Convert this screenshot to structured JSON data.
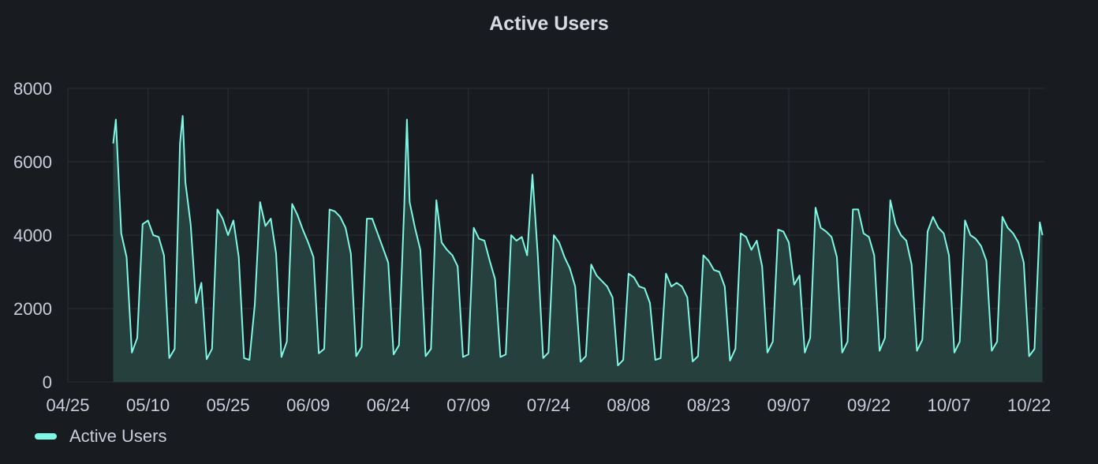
{
  "panel": {
    "title": "Active Users"
  },
  "colors": {
    "background": "#181b1f",
    "series_line": "#7ef7e4",
    "series_fill": "#26403e",
    "grid": "#2c3035",
    "text": "#ccccdc"
  },
  "legend": {
    "placement": "bottom-left",
    "items": [
      {
        "label": "Active Users",
        "color": "#7ef7e4",
        "icon": "legend-line-swatch"
      }
    ]
  },
  "chart_data": {
    "type": "area",
    "title": "Active Users",
    "xlabel": "",
    "ylabel": "",
    "grid": true,
    "x_axis": {
      "range": [
        "2023-04-25",
        "2023-10-25"
      ],
      "ticks": [
        {
          "date": "2023-04-25",
          "label": "04/25"
        },
        {
          "date": "2023-05-10",
          "label": "05/10"
        },
        {
          "date": "2023-05-25",
          "label": "05/25"
        },
        {
          "date": "2023-06-09",
          "label": "06/09"
        },
        {
          "date": "2023-06-24",
          "label": "06/24"
        },
        {
          "date": "2023-07-09",
          "label": "07/09"
        },
        {
          "date": "2023-07-24",
          "label": "07/24"
        },
        {
          "date": "2023-08-08",
          "label": "08/08"
        },
        {
          "date": "2023-08-23",
          "label": "08/23"
        },
        {
          "date": "2023-09-07",
          "label": "09/07"
        },
        {
          "date": "2023-09-22",
          "label": "09/22"
        },
        {
          "date": "2023-10-07",
          "label": "10/07"
        },
        {
          "date": "2023-10-22",
          "label": "10/22"
        }
      ]
    },
    "y_axis": {
      "range": [
        0,
        8000
      ],
      "ticks": [
        0,
        2000,
        4000,
        6000,
        8000
      ]
    },
    "series": [
      {
        "name": "Active Users",
        "color": "#7ef7e4",
        "points": [
          [
            "2023-05-03T12:00",
            6500
          ],
          [
            "2023-05-04",
            7150
          ],
          [
            "2023-05-05",
            4050
          ],
          [
            "2023-05-06",
            3400
          ],
          [
            "2023-05-07",
            800
          ],
          [
            "2023-05-08",
            1200
          ],
          [
            "2023-05-09",
            4300
          ],
          [
            "2023-05-10",
            4400
          ],
          [
            "2023-05-11",
            4000
          ],
          [
            "2023-05-12",
            3950
          ],
          [
            "2023-05-13",
            3450
          ],
          [
            "2023-05-14",
            650
          ],
          [
            "2023-05-15",
            900
          ],
          [
            "2023-05-16",
            6500
          ],
          [
            "2023-05-16T12:00",
            7250
          ],
          [
            "2023-05-17",
            5450
          ],
          [
            "2023-05-18",
            4300
          ],
          [
            "2023-05-19",
            2150
          ],
          [
            "2023-05-20",
            2700
          ],
          [
            "2023-05-21",
            620
          ],
          [
            "2023-05-22",
            900
          ],
          [
            "2023-05-23",
            4700
          ],
          [
            "2023-05-24",
            4450
          ],
          [
            "2023-05-25",
            4000
          ],
          [
            "2023-05-26",
            4400
          ],
          [
            "2023-05-27",
            3400
          ],
          [
            "2023-05-28",
            650
          ],
          [
            "2023-05-29",
            600
          ],
          [
            "2023-05-30",
            2100
          ],
          [
            "2023-05-31",
            4900
          ],
          [
            "2023-06-01",
            4250
          ],
          [
            "2023-06-02",
            4450
          ],
          [
            "2023-06-03",
            3500
          ],
          [
            "2023-06-04",
            680
          ],
          [
            "2023-06-05",
            1100
          ],
          [
            "2023-06-06",
            4850
          ],
          [
            "2023-06-07",
            4550
          ],
          [
            "2023-06-08",
            4150
          ],
          [
            "2023-06-09",
            3800
          ],
          [
            "2023-06-10",
            3400
          ],
          [
            "2023-06-11",
            780
          ],
          [
            "2023-06-12",
            900
          ],
          [
            "2023-06-13",
            4700
          ],
          [
            "2023-06-14",
            4650
          ],
          [
            "2023-06-15",
            4500
          ],
          [
            "2023-06-16",
            4200
          ],
          [
            "2023-06-17",
            3500
          ],
          [
            "2023-06-18",
            700
          ],
          [
            "2023-06-19",
            950
          ],
          [
            "2023-06-20",
            4450
          ],
          [
            "2023-06-21",
            4450
          ],
          [
            "2023-06-22",
            4050
          ],
          [
            "2023-06-23",
            3650
          ],
          [
            "2023-06-24",
            3250
          ],
          [
            "2023-06-25",
            750
          ],
          [
            "2023-06-26",
            1000
          ],
          [
            "2023-06-27",
            4800
          ],
          [
            "2023-06-27T12:00",
            7150
          ],
          [
            "2023-06-28",
            4900
          ],
          [
            "2023-06-29",
            4200
          ],
          [
            "2023-06-30",
            3600
          ],
          [
            "2023-07-01",
            700
          ],
          [
            "2023-07-02",
            900
          ],
          [
            "2023-07-03",
            4950
          ],
          [
            "2023-07-04",
            3800
          ],
          [
            "2023-07-05",
            3600
          ],
          [
            "2023-07-06",
            3450
          ],
          [
            "2023-07-07",
            3150
          ],
          [
            "2023-07-08",
            680
          ],
          [
            "2023-07-09",
            750
          ],
          [
            "2023-07-10",
            4200
          ],
          [
            "2023-07-11",
            3900
          ],
          [
            "2023-07-12",
            3850
          ],
          [
            "2023-07-13",
            3300
          ],
          [
            "2023-07-14",
            2800
          ],
          [
            "2023-07-15",
            680
          ],
          [
            "2023-07-16",
            750
          ],
          [
            "2023-07-17",
            4000
          ],
          [
            "2023-07-18",
            3850
          ],
          [
            "2023-07-19",
            3950
          ],
          [
            "2023-07-20",
            3450
          ],
          [
            "2023-07-21",
            5650
          ],
          [
            "2023-07-22",
            3450
          ],
          [
            "2023-07-23",
            650
          ],
          [
            "2023-07-24",
            800
          ],
          [
            "2023-07-25",
            4000
          ],
          [
            "2023-07-26",
            3800
          ],
          [
            "2023-07-27",
            3400
          ],
          [
            "2023-07-28",
            3100
          ],
          [
            "2023-07-29",
            2600
          ],
          [
            "2023-07-30",
            550
          ],
          [
            "2023-07-31",
            700
          ],
          [
            "2023-08-01",
            3200
          ],
          [
            "2023-08-02",
            2900
          ],
          [
            "2023-08-03",
            2750
          ],
          [
            "2023-08-04",
            2600
          ],
          [
            "2023-08-05",
            2300
          ],
          [
            "2023-08-06",
            450
          ],
          [
            "2023-08-07",
            600
          ],
          [
            "2023-08-08",
            2950
          ],
          [
            "2023-08-09",
            2850
          ],
          [
            "2023-08-10",
            2600
          ],
          [
            "2023-08-11",
            2550
          ],
          [
            "2023-08-12",
            2150
          ],
          [
            "2023-08-13",
            600
          ],
          [
            "2023-08-14",
            650
          ],
          [
            "2023-08-15",
            2950
          ],
          [
            "2023-08-16",
            2600
          ],
          [
            "2023-08-17",
            2700
          ],
          [
            "2023-08-18",
            2600
          ],
          [
            "2023-08-19",
            2300
          ],
          [
            "2023-08-20",
            560
          ],
          [
            "2023-08-21",
            700
          ],
          [
            "2023-08-22",
            3450
          ],
          [
            "2023-08-23",
            3300
          ],
          [
            "2023-08-24",
            3050
          ],
          [
            "2023-08-25",
            3000
          ],
          [
            "2023-08-26",
            2600
          ],
          [
            "2023-08-27",
            580
          ],
          [
            "2023-08-28",
            900
          ],
          [
            "2023-08-29",
            4050
          ],
          [
            "2023-08-30",
            3950
          ],
          [
            "2023-08-31",
            3600
          ],
          [
            "2023-09-01",
            3850
          ],
          [
            "2023-09-02",
            3150
          ],
          [
            "2023-09-03",
            800
          ],
          [
            "2023-09-04",
            1100
          ],
          [
            "2023-09-05",
            4150
          ],
          [
            "2023-09-06",
            4100
          ],
          [
            "2023-09-07",
            3800
          ],
          [
            "2023-09-08",
            2650
          ],
          [
            "2023-09-09",
            2900
          ],
          [
            "2023-09-10",
            800
          ],
          [
            "2023-09-11",
            1200
          ],
          [
            "2023-09-12",
            4750
          ],
          [
            "2023-09-13",
            4200
          ],
          [
            "2023-09-14",
            4100
          ],
          [
            "2023-09-15",
            3950
          ],
          [
            "2023-09-16",
            3400
          ],
          [
            "2023-09-17",
            800
          ],
          [
            "2023-09-18",
            1100
          ],
          [
            "2023-09-19",
            4700
          ],
          [
            "2023-09-20",
            4700
          ],
          [
            "2023-09-21",
            4050
          ],
          [
            "2023-09-22",
            3950
          ],
          [
            "2023-09-23",
            3450
          ],
          [
            "2023-09-24",
            850
          ],
          [
            "2023-09-25",
            1200
          ],
          [
            "2023-09-26",
            4950
          ],
          [
            "2023-09-27",
            4300
          ],
          [
            "2023-09-28",
            4000
          ],
          [
            "2023-09-29",
            3850
          ],
          [
            "2023-09-30",
            3200
          ],
          [
            "2023-10-01",
            850
          ],
          [
            "2023-10-02",
            1150
          ],
          [
            "2023-10-03",
            4100
          ],
          [
            "2023-10-04",
            4500
          ],
          [
            "2023-10-05",
            4200
          ],
          [
            "2023-10-06",
            4050
          ],
          [
            "2023-10-07",
            3450
          ],
          [
            "2023-10-08",
            800
          ],
          [
            "2023-10-09",
            1100
          ],
          [
            "2023-10-10",
            4400
          ],
          [
            "2023-10-11",
            4000
          ],
          [
            "2023-10-12",
            3900
          ],
          [
            "2023-10-13",
            3700
          ],
          [
            "2023-10-14",
            3300
          ],
          [
            "2023-10-15",
            850
          ],
          [
            "2023-10-16",
            1100
          ],
          [
            "2023-10-17",
            4500
          ],
          [
            "2023-10-18",
            4200
          ],
          [
            "2023-10-19",
            4050
          ],
          [
            "2023-10-20",
            3800
          ],
          [
            "2023-10-21",
            3250
          ],
          [
            "2023-10-22",
            700
          ],
          [
            "2023-10-23",
            900
          ],
          [
            "2023-10-24",
            4350
          ],
          [
            "2023-10-24T12:00",
            4000
          ]
        ]
      }
    ]
  }
}
